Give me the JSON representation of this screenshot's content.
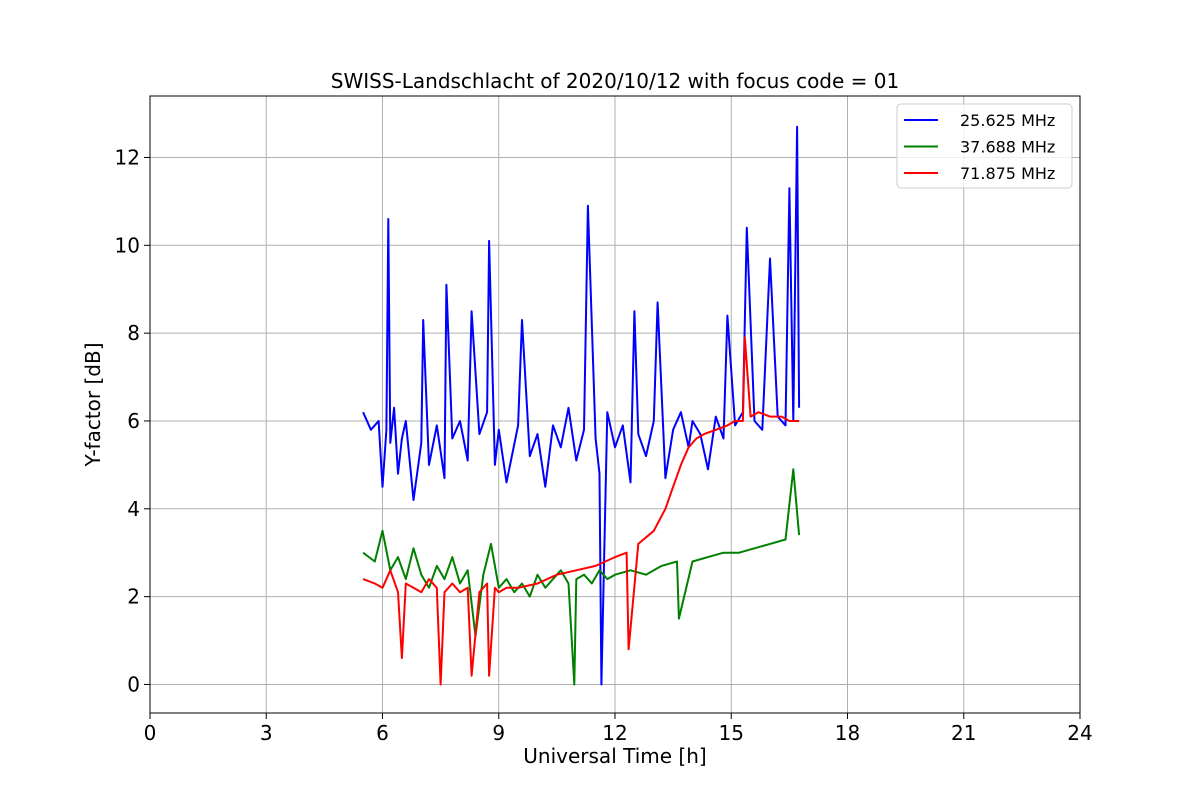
{
  "chart_data": {
    "type": "line",
    "title": "SWISS-Landschlacht of 2020/10/12 with focus code = 01",
    "xlabel": "Universal Time [h]",
    "ylabel": "Y-factor [dB]",
    "xlim": [
      0,
      24
    ],
    "ylim": [
      -0.65,
      13.4
    ],
    "xticks": [
      0,
      3,
      6,
      9,
      12,
      15,
      18,
      21,
      24
    ],
    "yticks": [
      0,
      2,
      4,
      6,
      8,
      10,
      12
    ],
    "grid": true,
    "legend_position": "top-right",
    "series": [
      {
        "name": "25.625 MHz",
        "color": "#0000ff",
        "x": [
          5.5,
          5.7,
          5.9,
          6.0,
          6.1,
          6.15,
          6.2,
          6.3,
          6.4,
          6.5,
          6.6,
          6.8,
          7.0,
          7.05,
          7.2,
          7.4,
          7.6,
          7.65,
          7.8,
          8.0,
          8.2,
          8.3,
          8.5,
          8.7,
          8.75,
          8.9,
          9.0,
          9.2,
          9.5,
          9.6,
          9.8,
          10.0,
          10.2,
          10.4,
          10.6,
          10.8,
          11.0,
          11.2,
          11.3,
          11.5,
          11.6,
          11.65,
          11.8,
          12.0,
          12.2,
          12.4,
          12.5,
          12.6,
          12.8,
          13.0,
          13.1,
          13.3,
          13.5,
          13.7,
          13.9,
          14.0,
          14.2,
          14.4,
          14.6,
          14.8,
          14.9,
          15.1,
          15.3,
          15.4,
          15.6,
          15.8,
          16.0,
          16.2,
          16.4,
          16.5,
          16.6,
          16.7,
          16.75
        ],
        "y": [
          6.2,
          5.8,
          6.0,
          4.5,
          5.8,
          10.6,
          5.5,
          6.3,
          4.8,
          5.6,
          6.0,
          4.2,
          5.5,
          8.3,
          5.0,
          5.9,
          4.7,
          9.1,
          5.6,
          6.0,
          5.1,
          8.5,
          5.7,
          6.2,
          10.1,
          5.0,
          5.8,
          4.6,
          5.9,
          8.3,
          5.2,
          5.7,
          4.5,
          5.9,
          5.4,
          6.3,
          5.1,
          5.8,
          10.9,
          5.6,
          4.8,
          0.0,
          6.2,
          5.4,
          5.9,
          4.6,
          8.5,
          5.7,
          5.2,
          6.0,
          8.7,
          4.7,
          5.8,
          6.2,
          5.4,
          6.0,
          5.7,
          4.9,
          6.1,
          5.6,
          8.4,
          5.9,
          6.2,
          10.4,
          6.0,
          5.8,
          9.7,
          6.1,
          5.9,
          11.3,
          6.0,
          12.7,
          6.3
        ]
      },
      {
        "name": "37.688 MHz",
        "color": "#008000",
        "x": [
          5.5,
          5.8,
          6.0,
          6.2,
          6.4,
          6.6,
          6.8,
          7.0,
          7.2,
          7.4,
          7.6,
          7.8,
          8.0,
          8.2,
          8.4,
          8.6,
          8.8,
          9.0,
          9.2,
          9.4,
          9.6,
          9.8,
          10.0,
          10.2,
          10.4,
          10.6,
          10.8,
          10.95,
          11.0,
          11.2,
          11.4,
          11.6,
          11.8,
          12.0,
          12.4,
          12.8,
          13.2,
          13.6,
          13.65,
          14.0,
          14.4,
          14.8,
          15.2,
          15.6,
          16.0,
          16.4,
          16.6,
          16.75
        ],
        "y": [
          3.0,
          2.8,
          3.5,
          2.6,
          2.9,
          2.4,
          3.1,
          2.5,
          2.2,
          2.7,
          2.4,
          2.9,
          2.3,
          2.6,
          1.1,
          2.5,
          3.2,
          2.2,
          2.4,
          2.1,
          2.3,
          2.0,
          2.5,
          2.2,
          2.4,
          2.6,
          2.3,
          0.0,
          2.4,
          2.5,
          2.3,
          2.6,
          2.4,
          2.5,
          2.6,
          2.5,
          2.7,
          2.8,
          1.5,
          2.8,
          2.9,
          3.0,
          3.0,
          3.1,
          3.2,
          3.3,
          4.9,
          3.4
        ]
      },
      {
        "name": "71.875 MHz",
        "color": "#ff0000",
        "x": [
          5.5,
          5.8,
          6.0,
          6.2,
          6.4,
          6.5,
          6.6,
          6.8,
          7.0,
          7.2,
          7.4,
          7.5,
          7.6,
          7.8,
          8.0,
          8.2,
          8.3,
          8.5,
          8.7,
          8.75,
          8.9,
          9.0,
          9.2,
          9.5,
          10.0,
          10.5,
          11.0,
          11.5,
          12.0,
          12.3,
          12.35,
          12.6,
          13.0,
          13.3,
          13.5,
          13.7,
          13.9,
          14.1,
          14.3,
          14.6,
          14.9,
          15.1,
          15.3,
          15.35,
          15.5,
          15.7,
          16.0,
          16.3,
          16.5,
          16.75
        ],
        "y": [
          2.4,
          2.3,
          2.2,
          2.6,
          2.1,
          0.6,
          2.3,
          2.2,
          2.1,
          2.4,
          2.2,
          0.0,
          2.1,
          2.3,
          2.1,
          2.2,
          0.2,
          2.1,
          2.3,
          0.2,
          2.2,
          2.1,
          2.2,
          2.2,
          2.3,
          2.5,
          2.6,
          2.7,
          2.9,
          3.0,
          0.8,
          3.2,
          3.5,
          4.0,
          4.5,
          5.0,
          5.4,
          5.6,
          5.7,
          5.8,
          5.9,
          6.0,
          6.0,
          7.9,
          6.1,
          6.2,
          6.1,
          6.1,
          6.0,
          6.0
        ]
      }
    ]
  }
}
